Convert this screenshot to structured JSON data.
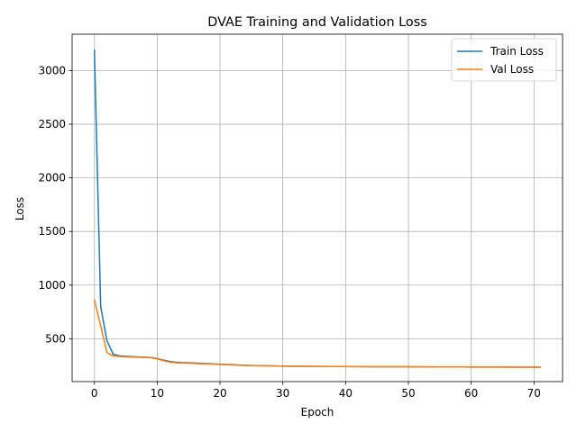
{
  "chart_data": {
    "type": "line",
    "title": "DVAE Training and Validation Loss",
    "xlabel": "Epoch",
    "ylabel": "Loss",
    "xlim": [
      -3.55,
      74.55
    ],
    "ylim": [
      100,
      3340
    ],
    "xticks": [
      0,
      10,
      20,
      30,
      40,
      50,
      60,
      70
    ],
    "yticks": [
      500,
      1000,
      1500,
      2000,
      2500,
      3000
    ],
    "grid": true,
    "legend_position": "top-right",
    "x": [
      0,
      1,
      2,
      3,
      4,
      5,
      6,
      7,
      8,
      9,
      10,
      11,
      12,
      13,
      14,
      15,
      16,
      17,
      18,
      19,
      20,
      21,
      22,
      23,
      24,
      25,
      26,
      27,
      28,
      29,
      30,
      31,
      32,
      33,
      34,
      35,
      36,
      37,
      38,
      39,
      40,
      41,
      42,
      43,
      44,
      45,
      46,
      47,
      48,
      49,
      50,
      51,
      52,
      53,
      54,
      55,
      56,
      57,
      58,
      59,
      60,
      61,
      62,
      63,
      64,
      65,
      66,
      67,
      68,
      69,
      70,
      71
    ],
    "series": [
      {
        "name": "Train Loss",
        "color": "#1f77b4",
        "values": [
          3190,
          800,
          480,
          355,
          340,
          336,
          333,
          330,
          328,
          325,
          315,
          300,
          288,
          280,
          277,
          275,
          273,
          270,
          268,
          265,
          262,
          260,
          258,
          254,
          252,
          250,
          249,
          248,
          247,
          246,
          245,
          244,
          244,
          243,
          243,
          242,
          242,
          242,
          241,
          241,
          241,
          240,
          240,
          240,
          239,
          239,
          239,
          238,
          238,
          238,
          238,
          237,
          237,
          237,
          237,
          236,
          236,
          236,
          236,
          236,
          235,
          235,
          235,
          235,
          235,
          235,
          235,
          234,
          234,
          234,
          234,
          234
        ]
      },
      {
        "name": "Val Loss",
        "color": "#ff7f0e",
        "values": [
          860,
          620,
          370,
          340,
          334,
          331,
          329,
          327,
          325,
          322,
          312,
          295,
          282,
          275,
          273,
          271,
          269,
          266,
          264,
          262,
          259,
          257,
          255,
          252,
          250,
          249,
          248,
          247,
          246,
          245,
          244,
          243,
          243,
          242,
          242,
          242,
          241,
          241,
          241,
          241,
          240,
          240,
          240,
          239,
          239,
          239,
          239,
          238,
          238,
          238,
          237,
          237,
          237,
          237,
          236,
          236,
          236,
          236,
          236,
          236,
          235,
          235,
          235,
          235,
          235,
          235,
          234,
          234,
          234,
          234,
          234,
          234
        ]
      }
    ]
  }
}
